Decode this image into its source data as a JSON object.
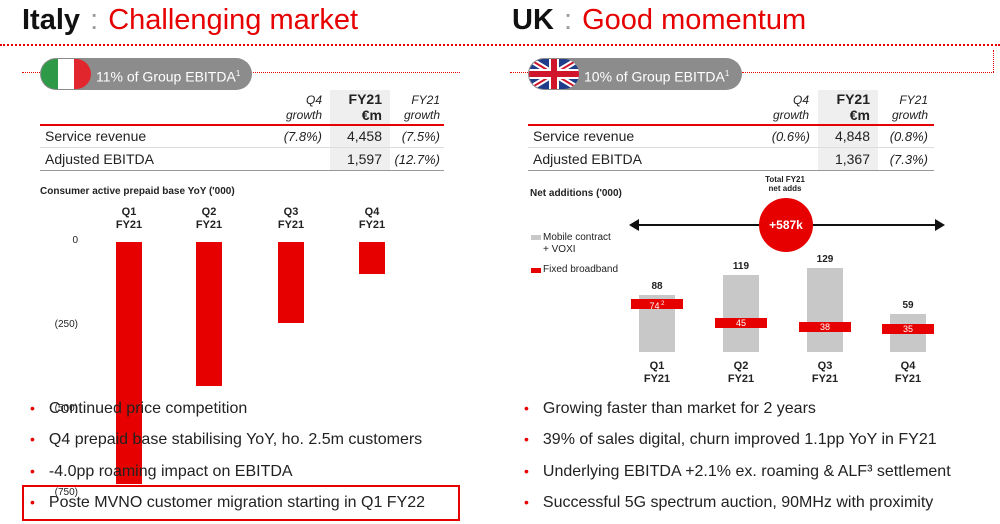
{
  "italy": {
    "title_bold": "Italy",
    "title_sep": ":",
    "title_red": "Challenging market",
    "pill_text": "11% of Group EBITDA",
    "pill_sup": "1",
    "flag_icon": "italy-flag-icon",
    "table": {
      "headers": [
        {
          "line1": "Q4",
          "line2": "growth"
        },
        {
          "line1": "FY21",
          "line2": "€m"
        },
        {
          "line1": "FY21",
          "line2": "growth"
        }
      ],
      "rows": [
        {
          "label": "Service revenue",
          "q4": "(7.8%)",
          "fy": "4,458",
          "fyg": "(7.5%)"
        },
        {
          "label": "Adjusted EBITDA",
          "q4": "",
          "fy": "1,597",
          "fyg": "(12.7%)"
        }
      ]
    },
    "chart_title": "Consumer active prepaid base YoY ('000)",
    "bullets": [
      "Continued price competition",
      "Q4 prepaid base stabilising YoY, ho. 2.5m customers",
      "-4.0pp roaming impact on EBITDA",
      "Poste MVNO customer migration starting in Q1 FY22"
    ]
  },
  "uk": {
    "title_bold": "UK",
    "title_sep": ":",
    "title_red": "Good momentum",
    "pill_text": "10% of Group EBITDA",
    "pill_sup": "1",
    "flag_icon": "uk-flag-icon",
    "table": {
      "headers": [
        {
          "line1": "Q4",
          "line2": "growth"
        },
        {
          "line1": "FY21",
          "line2": "€m"
        },
        {
          "line1": "FY21",
          "line2": "growth"
        }
      ],
      "rows": [
        {
          "label": "Service revenue",
          "q4": "(0.6%)",
          "fy": "4,848",
          "fyg": "(0.8%)"
        },
        {
          "label": "Adjusted EBITDA",
          "q4": "",
          "fy": "1,367",
          "fyg": "(7.3%)"
        }
      ]
    },
    "chart_title": "Net additions ('000)",
    "total_label_1": "Total FY21",
    "total_label_2": "net adds",
    "total_value": "+587k",
    "legend": [
      "Mobile contract",
      "+ VOXI",
      "Fixed broadband"
    ],
    "bullets": [
      "Growing faster than market for 2 years",
      "39% of sales digital, churn improved 1.1pp YoY in FY21",
      "Underlying EBITDA +2.1% ex. roaming & ALF³ settlement",
      "Successful 5G spectrum auction, 90MHz with proximity"
    ]
  },
  "colors": {
    "accent": "#e60000",
    "bar_grey": "#c8c8c8",
    "pill_grey": "#8c8c8c"
  },
  "chart_data": [
    {
      "type": "bar",
      "title": "Consumer active prepaid base YoY ('000)",
      "categories": [
        "Q1 FY21",
        "Q2 FY21",
        "Q3 FY21",
        "Q4 FY21"
      ],
      "values": [
        -720,
        -430,
        -240,
        -95
      ],
      "ylim": [
        -750,
        0
      ],
      "yticks": [
        "0",
        "(250)",
        "(500)",
        "(750)"
      ],
      "ytick_values": [
        0,
        -250,
        -500,
        -750
      ]
    },
    {
      "type": "bar",
      "title": "Net additions ('000)",
      "categories": [
        "Q1 FY21",
        "Q2 FY21",
        "Q3 FY21",
        "Q4 FY21"
      ],
      "series": [
        {
          "name": "Mobile contract + VOXI",
          "values": [
            88,
            119,
            129,
            59
          ]
        },
        {
          "name": "Fixed broadband",
          "values": [
            74,
            45,
            38,
            35
          ],
          "value_labels": [
            "74",
            "45",
            "38",
            "35"
          ],
          "sup_labels": [
            "2",
            "",
            "",
            ""
          ]
        }
      ],
      "ylim": [
        0,
        140
      ]
    }
  ]
}
